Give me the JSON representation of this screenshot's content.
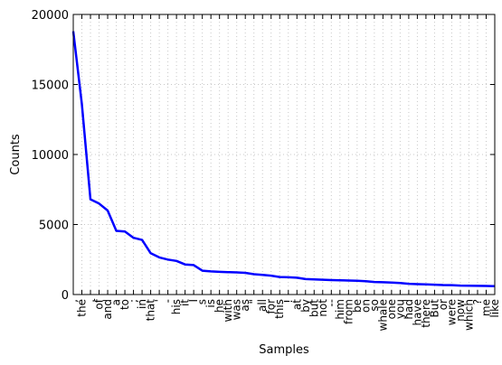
{
  "chart_data": {
    "type": "line",
    "title": "",
    "xlabel": "Samples",
    "ylabel": "Counts",
    "ylim": [
      0,
      20000
    ],
    "yticks": [
      "0",
      "5000",
      "10000",
      "15000",
      "20000"
    ],
    "grid": true,
    "series_color": "#0000ff",
    "categories": [
      ",",
      "the",
      ".",
      "of",
      "and",
      "a",
      "to",
      ";",
      "in",
      "that",
      "'",
      "-",
      "his",
      "it",
      "I",
      "s",
      "is",
      "he",
      "with",
      "was",
      "as",
      "\"",
      "all",
      "for",
      "this",
      "!",
      "at",
      "by",
      "but",
      "not",
      "--",
      "him",
      "from",
      "be",
      "on",
      "so",
      "whale",
      "one",
      "you",
      "had",
      "have",
      "there",
      "But",
      "or",
      "were",
      "now",
      "which",
      "?",
      "me",
      "like"
    ],
    "values": [
      18800,
      13600,
      6800,
      6500,
      6000,
      4550,
      4500,
      4050,
      3900,
      2950,
      2650,
      2500,
      2400,
      2150,
      2100,
      1700,
      1650,
      1620,
      1600,
      1580,
      1550,
      1450,
      1400,
      1350,
      1250,
      1230,
      1200,
      1100,
      1080,
      1060,
      1030,
      1010,
      1000,
      980,
      950,
      900,
      880,
      860,
      820,
      770,
      740,
      720,
      700,
      680,
      670,
      640,
      630,
      620,
      610,
      600
    ]
  }
}
